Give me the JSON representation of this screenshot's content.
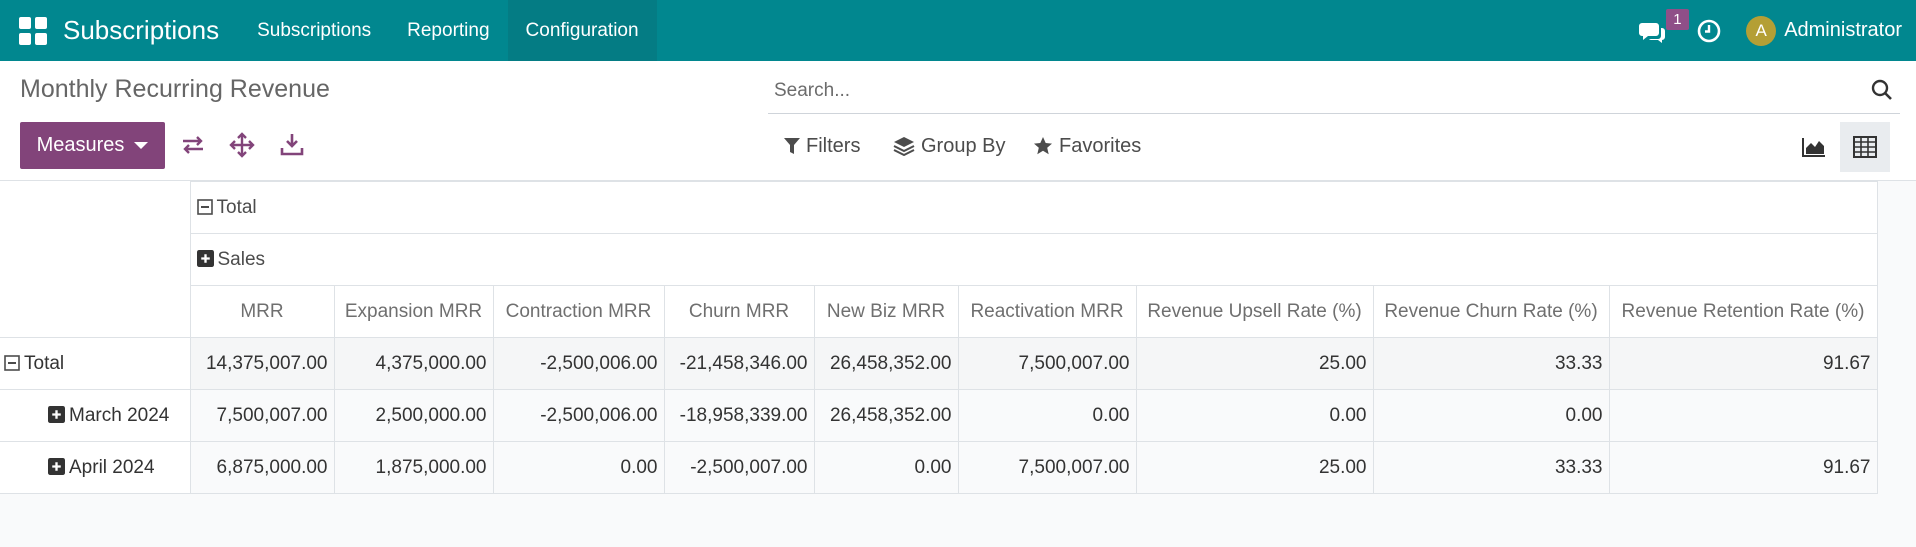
{
  "navbar": {
    "brand": "Subscriptions",
    "menu": [
      {
        "label": "Subscriptions"
      },
      {
        "label": "Reporting"
      },
      {
        "label": "Configuration"
      }
    ],
    "chat_badge": "1",
    "avatar_letter": "A",
    "user_name": "Administrator",
    "color": "#01878f"
  },
  "control": {
    "title": "Monthly Recurring Revenue",
    "measures_label": "Measures",
    "search_placeholder": "Search...",
    "filters_label": "Filters",
    "group_by_label": "Group By",
    "favorites_label": "Favorites",
    "accent": "#82447a"
  },
  "pivot": {
    "col_total_label": "Total",
    "col_group_label": "Sales",
    "measures": [
      "MRR",
      "Expansion MRR",
      "Contraction MRR",
      "Churn MRR",
      "New Biz MRR",
      "Reactivation MRR",
      "Revenue Upsell Rate (%)",
      "Revenue Churn Rate (%)",
      "Revenue Retention Rate (%)"
    ],
    "rows": [
      {
        "label": "Total",
        "values": [
          "14,375,007.00",
          "4,375,000.00",
          "-2,500,006.00",
          "-21,458,346.00",
          "26,458,352.00",
          "7,500,007.00",
          "25.00",
          "33.33",
          "91.67"
        ]
      },
      {
        "label": "March 2024",
        "values": [
          "7,500,007.00",
          "2,500,000.00",
          "-2,500,006.00",
          "-18,958,339.00",
          "26,458,352.00",
          "0.00",
          "0.00",
          "0.00",
          ""
        ]
      },
      {
        "label": "April 2024",
        "values": [
          "6,875,000.00",
          "1,875,000.00",
          "0.00",
          "-2,500,007.00",
          "0.00",
          "7,500,007.00",
          "25.00",
          "33.33",
          "91.67"
        ]
      }
    ]
  }
}
